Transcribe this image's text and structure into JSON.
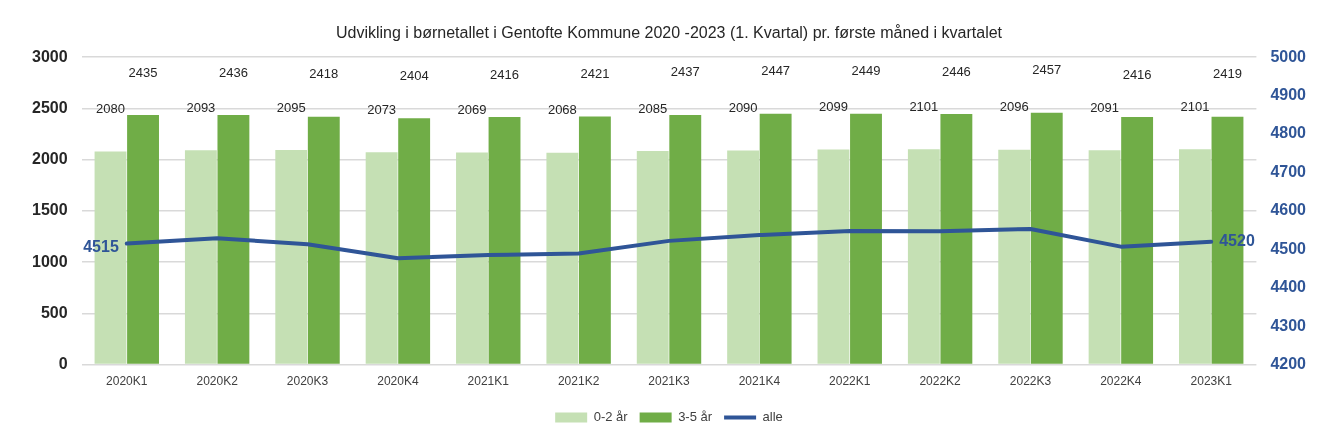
{
  "chart_data": {
    "type": "bar",
    "title": "Udvikling i børnetallet i Gentofte Kommune 2020 -2023 (1. Kvartal) pr. første måned i kvartalet",
    "categories": [
      "2020K1",
      "2020K2",
      "2020K3",
      "2020K4",
      "2021K1",
      "2021K2",
      "2021K3",
      "2021K4",
      "2022K1",
      "2022K2",
      "2022K3",
      "2022K4",
      "2023K1"
    ],
    "series": [
      {
        "name": "0-2 år",
        "color": "#c5e0b4",
        "values": [
          2080,
          2093,
          2095,
          2073,
          2069,
          2068,
          2085,
          2090,
          2099,
          2101,
          2096,
          2091,
          2101
        ],
        "value_labels": [
          "2080",
          "2093",
          "2095",
          "2073",
          "2069",
          "2068",
          "2085",
          "2090",
          "2099",
          "2101",
          "2096",
          "2091",
          "2101"
        ]
      },
      {
        "name": "3-5 år",
        "color": "#70ad47",
        "values": [
          2435,
          2436,
          2418,
          2404,
          2416,
          2421,
          2437,
          2447,
          2449,
          2446,
          2457,
          2416,
          2419
        ],
        "value_labels": [
          "2435",
          "2436",
          "2418",
          "2404",
          "2416",
          "2421",
          "2437",
          "2447",
          "2449",
          "2446",
          "2457",
          "2416",
          "2419"
        ]
      },
      {
        "name": "alle",
        "type": "line",
        "axis": "y2",
        "color": "#2f5597",
        "values": [
          4515,
          4529,
          4513,
          4477,
          4485,
          4489,
          4522,
          4537,
          4548,
          4547,
          4553,
          4507,
          4520
        ],
        "value_labels": [
          "4515",
          null,
          null,
          null,
          null,
          null,
          null,
          null,
          null,
          null,
          null,
          null,
          "4520"
        ]
      }
    ],
    "ylim": [
      0,
      3000
    ],
    "yticks": [
      0,
      500,
      1000,
      1500,
      2000,
      2500,
      3000
    ],
    "y2lim": [
      4200,
      5000
    ],
    "y2ticks": [
      4200,
      4300,
      4400,
      4500,
      4600,
      4700,
      4800,
      4900,
      5000
    ],
    "grid": "y",
    "legend": "bottom"
  }
}
